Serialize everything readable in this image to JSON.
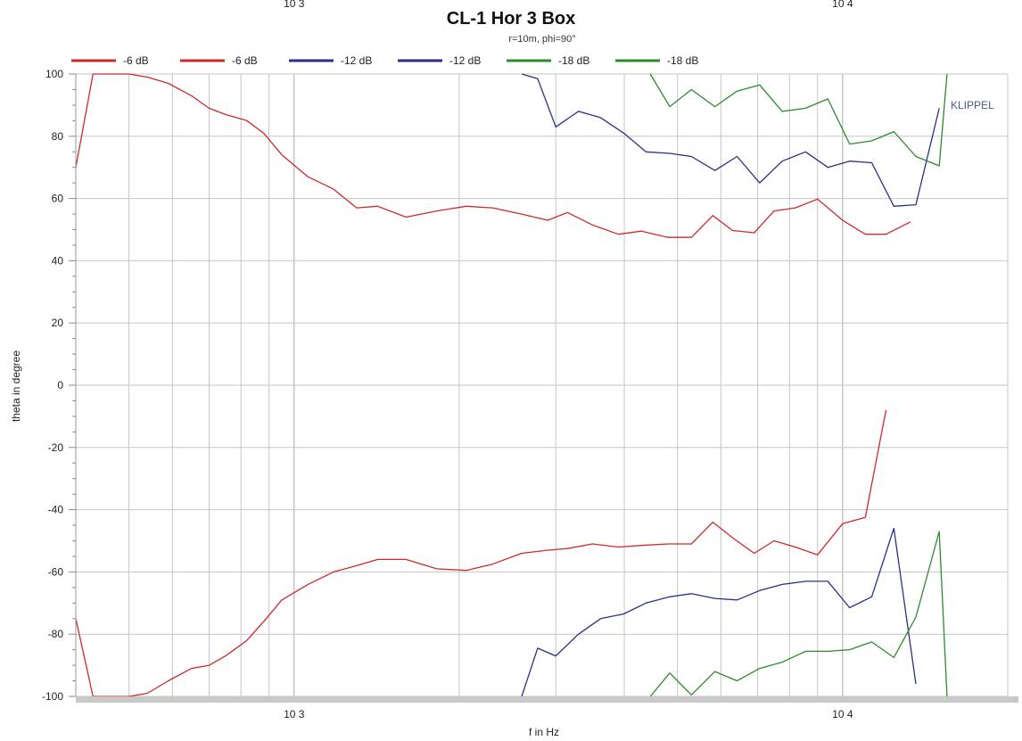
{
  "chart_data": {
    "type": "line",
    "title": "CL-1 Hor 3 Box",
    "subtitle": "r=10m, phi=90°",
    "xlabel": "f in Hz",
    "ylabel": "theta in degree",
    "x_scale": "log",
    "xlim": [
      400,
      20000
    ],
    "ylim": [
      -100,
      100
    ],
    "y_ticks": [
      100,
      80,
      60,
      40,
      20,
      0,
      -20,
      -40,
      -60,
      -80,
      -100
    ],
    "x_ticks": [
      {
        "value": 1000,
        "label": "10 3"
      },
      {
        "value": 10000,
        "label": "10 4"
      }
    ],
    "top_tick_labels": [
      {
        "value": 1000,
        "label": "10 3"
      },
      {
        "value": 10000,
        "label": "10 4"
      }
    ],
    "grid": true,
    "legend_position": "top",
    "annotation": "KLIPPEL",
    "series": [
      {
        "name": "-6 dB",
        "color": "#cc2a2a",
        "x": [
          400,
          430,
          500,
          540,
          590,
          650,
          700,
          750,
          820,
          880,
          950,
          1060,
          1180,
          1300,
          1420,
          1600,
          1820,
          2060,
          2300,
          2600,
          2900,
          3150,
          3500,
          3900,
          4300,
          4800,
          5300,
          5800,
          6300,
          6900,
          7500,
          8200,
          9000,
          10000,
          11000,
          12000,
          13300,
          14500,
          16000,
          17500,
          19200
        ],
        "y": [
          70,
          100,
          100,
          99,
          97,
          93,
          89,
          87,
          85,
          81,
          74,
          67,
          63,
          57,
          57.5,
          54,
          56,
          57.5,
          57,
          55,
          53,
          55.5,
          51.5,
          48.5,
          49.5,
          47.5,
          47.5,
          54.5,
          49.7,
          49,
          56,
          57,
          59.8,
          53,
          48.5,
          48.5,
          52.5,
          null,
          null,
          null,
          null
        ]
      },
      {
        "name": "-6 dB",
        "color": "#cc2a2a",
        "x": [
          400,
          430,
          500,
          540,
          590,
          650,
          700,
          750,
          820,
          880,
          950,
          1060,
          1180,
          1300,
          1420,
          1600,
          1820,
          2060,
          2300,
          2600,
          2900,
          3150,
          3500,
          3900,
          4300,
          4800,
          5300,
          5800,
          6300,
          6900,
          7500,
          8200,
          9000,
          10000,
          11000,
          12000,
          13300,
          14500,
          16000,
          17500,
          19200
        ],
        "y": [
          -75,
          -100,
          -100,
          -99,
          -95,
          -91,
          -90,
          -87,
          -82,
          -76,
          -69,
          -64,
          -60,
          -58,
          -56,
          -56,
          -59,
          -59.5,
          -57.5,
          -54,
          -53,
          -52.5,
          -51,
          -52,
          -51.5,
          -51,
          -51,
          -44,
          -49,
          -54,
          -50,
          -52,
          -54.5,
          -44.5,
          -42.5,
          -8,
          null,
          null,
          null,
          null,
          null
        ]
      },
      {
        "name": "-12 dB",
        "color": "#2a2f8a",
        "x": [
          2600,
          2780,
          3000,
          3300,
          3620,
          3990,
          4380,
          4840,
          5300,
          5850,
          6420,
          7060,
          7760,
          8560,
          9400,
          10300,
          11300,
          12400,
          13600,
          15000,
          16500,
          18100,
          19200
        ],
        "y": [
          100,
          98.5,
          83,
          88,
          86,
          81,
          75,
          74.5,
          73.5,
          69,
          73.5,
          65,
          72,
          75,
          70,
          72,
          71.5,
          57.5,
          58,
          89,
          null,
          null,
          null
        ]
      },
      {
        "name": "-12 dB",
        "color": "#2a2f8a",
        "x": [
          2600,
          2780,
          3000,
          3300,
          3620,
          3990,
          4380,
          4840,
          5300,
          5850,
          6420,
          7060,
          7760,
          8560,
          9400,
          10300,
          11300,
          12400,
          13600,
          15000,
          16500,
          18100,
          19200
        ],
        "y": [
          -100,
          -84.5,
          -87,
          -80,
          -75,
          -73.5,
          -70,
          -68,
          -67,
          -68.5,
          -69,
          -66,
          -64,
          -63,
          -63,
          -71.5,
          -68,
          -46,
          -96,
          null,
          null,
          null,
          null
        ]
      },
      {
        "name": "-18 dB",
        "color": "#2e8a2e",
        "x": [
          4460,
          4840,
          5300,
          5850,
          6420,
          7060,
          7760,
          8560,
          9400,
          10300,
          11300,
          12400,
          13600,
          15000,
          15500,
          16500,
          18100,
          19200
        ],
        "y": [
          100,
          89.5,
          95,
          89.5,
          94.5,
          96.5,
          88,
          89,
          92,
          77.5,
          78.5,
          81.5,
          73.5,
          70.5,
          100,
          null,
          null,
          null
        ]
      },
      {
        "name": "-18 dB",
        "color": "#2e8a2e",
        "x": [
          4460,
          4840,
          5300,
          5850,
          6420,
          7060,
          7760,
          8560,
          9400,
          10300,
          11300,
          12400,
          13600,
          15000,
          15500,
          16500,
          18100,
          19200
        ],
        "y": [
          -100,
          -92.5,
          -99.5,
          -92,
          -95,
          -91,
          -89,
          -85.5,
          -85.5,
          -85,
          -82.5,
          -87.5,
          -74.5,
          -47,
          -100,
          null,
          null,
          null
        ]
      }
    ]
  }
}
